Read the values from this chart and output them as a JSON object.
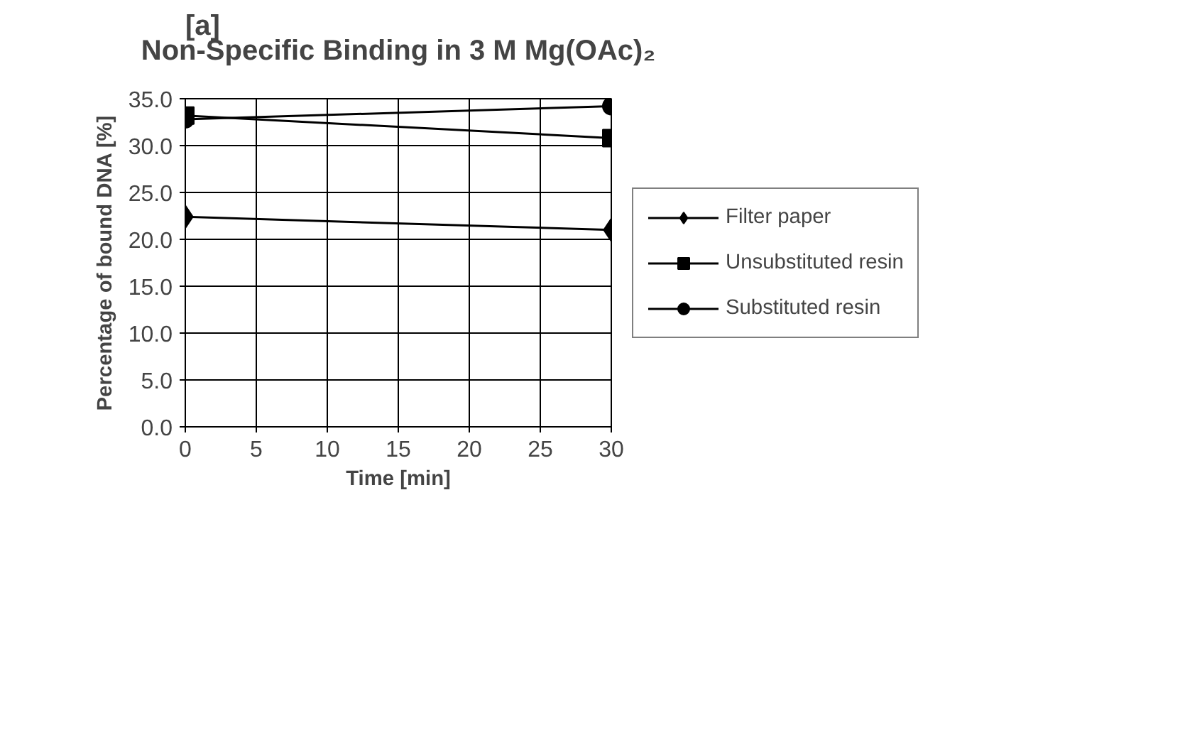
{
  "chart_data": {
    "type": "line",
    "title": "Non-Specific Binding in 3 M Mg(OAc)₂",
    "annotations": [
      "[a]"
    ],
    "xlabel": "Time [min]",
    "ylabel": "Percentage of bound DNA [%]",
    "x": [
      0,
      30
    ],
    "series": [
      {
        "name": "Filter paper",
        "color": "#000000",
        "marker": "diamond",
        "values": [
          22.4,
          21.0
        ]
      },
      {
        "name": "Unsubstituted resin",
        "color": "#000000",
        "marker": "square",
        "values": [
          33.2,
          30.8
        ]
      },
      {
        "name": "Substituted resin",
        "color": "#000000",
        "marker": "circle",
        "values": [
          32.8,
          34.2
        ]
      }
    ],
    "xlim": [
      0,
      30
    ],
    "xticks": [
      0,
      5,
      10,
      15,
      20,
      25,
      30
    ],
    "ylim": [
      0,
      35
    ],
    "yticks": [
      {
        "value": 0,
        "label": "0.0"
      },
      {
        "value": 5,
        "label": "5.0"
      },
      {
        "value": 10,
        "label": "10.0"
      },
      {
        "value": 15,
        "label": "15.0"
      },
      {
        "value": 20,
        "label": "20.0"
      },
      {
        "value": 25,
        "label": "25.0"
      },
      {
        "value": 30,
        "label": "30.0"
      },
      {
        "value": 35,
        "label": "35.0"
      }
    ],
    "grid": true,
    "legend": "right",
    "line_style": "solid"
  }
}
